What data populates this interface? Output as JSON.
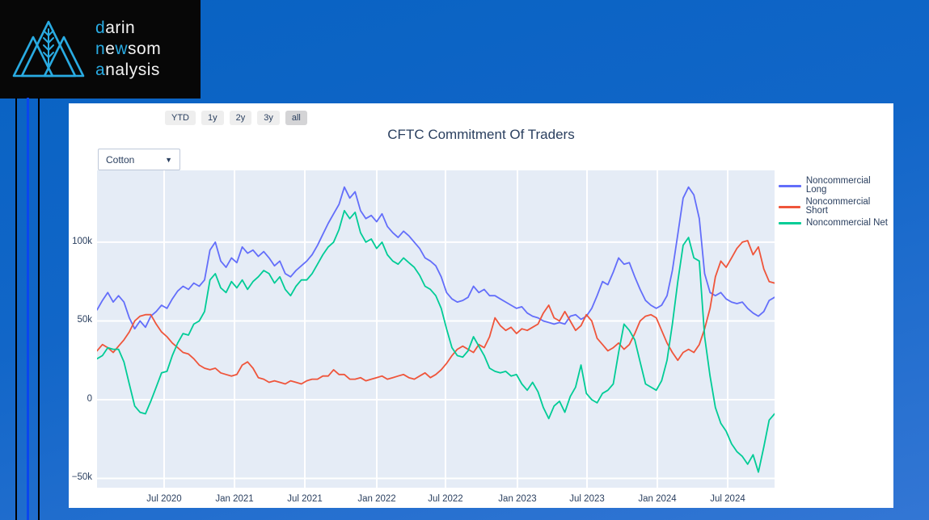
{
  "logo": {
    "accent": "#29abe2",
    "lines": [
      [
        [
          "d",
          true
        ],
        [
          "arin",
          false
        ]
      ],
      [
        [
          "n",
          true
        ],
        [
          "e",
          false
        ],
        [
          "w",
          true
        ],
        [
          "som",
          false
        ]
      ],
      [
        [
          "a",
          true
        ],
        [
          "nalysis",
          false
        ]
      ]
    ]
  },
  "toolbar": {
    "buttons": [
      {
        "label": "YTD",
        "active": false
      },
      {
        "label": "1y",
        "active": false
      },
      {
        "label": "2y",
        "active": false
      },
      {
        "label": "3y",
        "active": false
      },
      {
        "label": "all",
        "active": true
      }
    ]
  },
  "dropdown": {
    "value": "Cotton",
    "caret": "▼"
  },
  "chart_data": {
    "type": "line",
    "title": "CFTC Commitment Of Traders",
    "xlabel": "",
    "ylabel": "",
    "grid": true,
    "legend_position": "right",
    "plot_bg": "#e5ecf6",
    "ylim_k": [
      -55.9,
      145.6
    ],
    "y_ticks": [
      {
        "v": -50,
        "label": "−50k"
      },
      {
        "v": 0,
        "label": "0"
      },
      {
        "v": 50,
        "label": "50k"
      },
      {
        "v": 100,
        "label": "100k"
      }
    ],
    "x_ticks": [
      {
        "f": 0.099,
        "label": "Jul 2020"
      },
      {
        "f": 0.2029,
        "label": "Jan 2021"
      },
      {
        "f": 0.3067,
        "label": "Jul 2021"
      },
      {
        "f": 0.4129,
        "label": "Jan 2022"
      },
      {
        "f": 0.5143,
        "label": "Jul 2022"
      },
      {
        "f": 0.6205,
        "label": "Jan 2023"
      },
      {
        "f": 0.7232,
        "label": "Jul 2023"
      },
      {
        "f": 0.827,
        "label": "Jan 2024"
      },
      {
        "f": 0.9308,
        "label": "Jul 2024"
      }
    ],
    "units": "contracts, thousands (k)",
    "series": [
      {
        "name": "Noncommercial Long",
        "color": "#636efa",
        "values": [
          57,
          63,
          68,
          62,
          66,
          62,
          52,
          45,
          50,
          46,
          53,
          56,
          60,
          58,
          64,
          69,
          72,
          70,
          74,
          72,
          76,
          95,
          100,
          88,
          84,
          90,
          87,
          97,
          93,
          95,
          91,
          94,
          90,
          85,
          88,
          80,
          78,
          82,
          85,
          88,
          92,
          98,
          105,
          112,
          118,
          124,
          135,
          128,
          132,
          120,
          115,
          117,
          113,
          118,
          110,
          106,
          103,
          107,
          104,
          100,
          96,
          90,
          88,
          85,
          78,
          68,
          64,
          62,
          63,
          65,
          72,
          68,
          70,
          66,
          66,
          64,
          62,
          60,
          58,
          59,
          55,
          53,
          52,
          50,
          49,
          48,
          49,
          48,
          53,
          54,
          51,
          53,
          58,
          66,
          75,
          73,
          81,
          90,
          86,
          87,
          78,
          70,
          63,
          60,
          58,
          60,
          66,
          82,
          105,
          128,
          135,
          130,
          115,
          80,
          68,
          66,
          68,
          64,
          62,
          61,
          62,
          58,
          55,
          53,
          56,
          63,
          65
        ]
      },
      {
        "name": "Noncommercial Short",
        "color": "#ef553b",
        "values": [
          31,
          35,
          33,
          30,
          34,
          38,
          43,
          50,
          53,
          54,
          54,
          48,
          43,
          40,
          36,
          33,
          30,
          29,
          26,
          22,
          20,
          19,
          20,
          17,
          16,
          15,
          16,
          22,
          24,
          20,
          14,
          13,
          11,
          12,
          11,
          10,
          12,
          11,
          10,
          12,
          13,
          13,
          15,
          15,
          19,
          16,
          16,
          13,
          13,
          14,
          12,
          13,
          14,
          15,
          13,
          14,
          15,
          16,
          14,
          13,
          15,
          17,
          14,
          16,
          19,
          23,
          28,
          32,
          34,
          32,
          30,
          35,
          33,
          40,
          52,
          47,
          44,
          46,
          42,
          45,
          44,
          46,
          48,
          55,
          60,
          52,
          50,
          56,
          50,
          44,
          47,
          54,
          50,
          39,
          35,
          31,
          33,
          36,
          32,
          35,
          42,
          50,
          53,
          54,
          52,
          44,
          36,
          30,
          25,
          30,
          32,
          30,
          35,
          45,
          58,
          78,
          88,
          84,
          90,
          96,
          100,
          101,
          92,
          97,
          83,
          75,
          74
        ]
      },
      {
        "name": "Noncommercial Net",
        "color": "#00cc96",
        "values": [
          26,
          28,
          33,
          32,
          32,
          24,
          10,
          -4,
          -8,
          -9,
          -1,
          8,
          17,
          18,
          28,
          36,
          42,
          41,
          48,
          50,
          56,
          76,
          80,
          71,
          68,
          75,
          71,
          76,
          70,
          75,
          78,
          82,
          80,
          74,
          78,
          70,
          66,
          72,
          76,
          76,
          80,
          86,
          92,
          97,
          100,
          108,
          120,
          115,
          119,
          106,
          100,
          102,
          96,
          100,
          92,
          88,
          86,
          90,
          87,
          84,
          79,
          72,
          70,
          66,
          58,
          45,
          33,
          28,
          27,
          31,
          40,
          34,
          28,
          20,
          18,
          17,
          18,
          15,
          16,
          10,
          6,
          11,
          5,
          -5,
          -12,
          -4,
          -1,
          -8,
          2,
          8,
          22,
          4,
          0,
          -2,
          4,
          6,
          10,
          30,
          48,
          44,
          38,
          24,
          10,
          8,
          6,
          12,
          25,
          48,
          75,
          98,
          103,
          90,
          88,
          40,
          15,
          -5,
          -15,
          -20,
          -28,
          -33,
          -36,
          -41,
          -35,
          -46,
          -30,
          -13,
          -9
        ]
      }
    ]
  }
}
